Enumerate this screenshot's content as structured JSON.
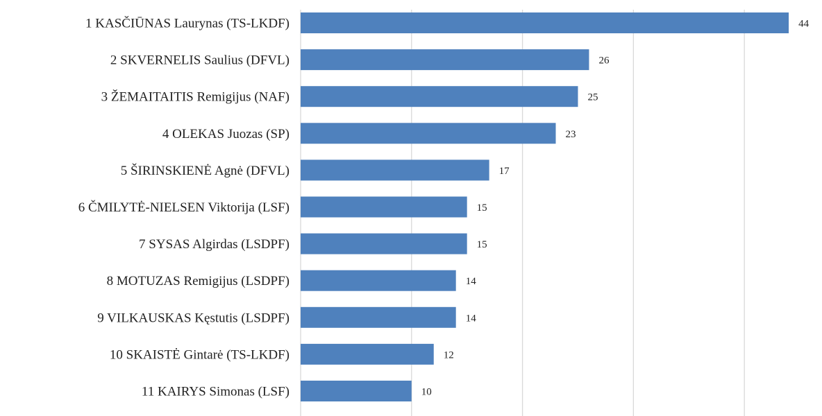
{
  "chart_data": {
    "type": "bar",
    "orientation": "horizontal",
    "categories": [
      "1 KASČIŪNAS Laurynas (TS-LKDF)",
      "2 SKVERNELIS Saulius (DFVL)",
      "3 ŽEMAITAITIS Remigijus (NAF)",
      "4 OLEKAS Juozas (SP)",
      "5 ŠIRINSKIENĖ Agnė (DFVL)",
      "6 ČMILYTĖ-NIELSEN Viktorija (LSF)",
      "7 SYSAS Algirdas (LSDPF)",
      "8 MOTUZAS Remigijus (LSDPF)",
      "9 VILKAUSKAS Kęstutis (LSDPF)",
      "10 SKAISTĖ Gintarė (TS-LKDF)",
      "11 KAIRYS Simonas (LSF)"
    ],
    "values": [
      44,
      26,
      25,
      23,
      17,
      15,
      15,
      14,
      14,
      12,
      10
    ],
    "value_labels": [
      "44",
      "26",
      "25",
      "23",
      "17",
      "15",
      "15",
      "14",
      "14",
      "12",
      "10"
    ],
    "xlim": [
      0,
      47
    ],
    "gridlines_at": [
      0,
      10,
      20,
      30,
      40
    ],
    "grid": true,
    "bar_color": "#4f81bd",
    "grid_color": "#d9d9d9"
  }
}
